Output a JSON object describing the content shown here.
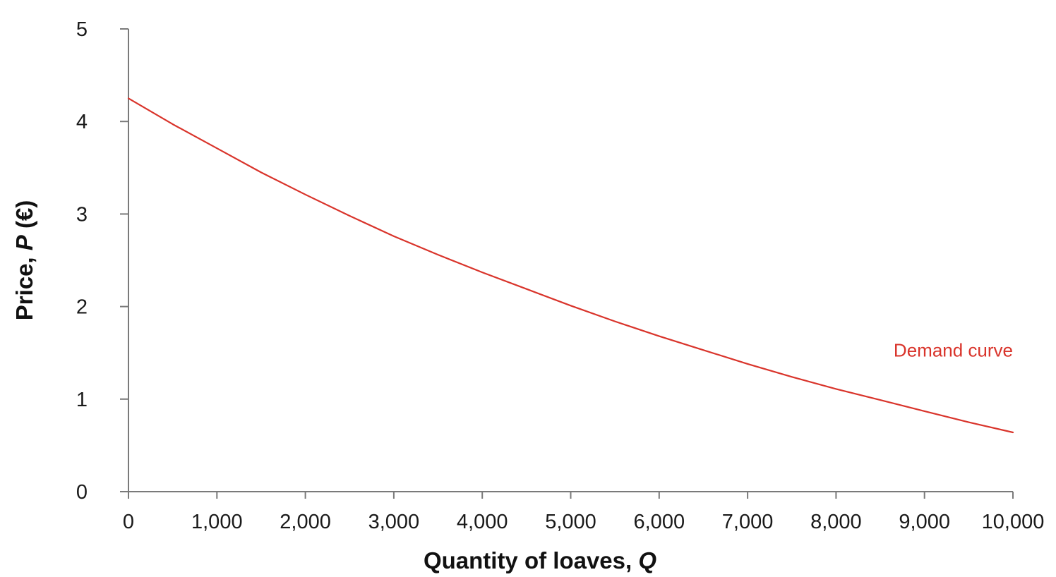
{
  "chart_data": {
    "type": "line",
    "xlabel": "Quantity of loaves, Q",
    "ylabel": "Price, P (€)",
    "xlim": [
      0,
      10000
    ],
    "ylim": [
      0,
      5
    ],
    "x_ticks": [
      {
        "value": 0,
        "label": "0"
      },
      {
        "value": 1000,
        "label": "1,000"
      },
      {
        "value": 2000,
        "label": "2,000"
      },
      {
        "value": 3000,
        "label": "3,000"
      },
      {
        "value": 4000,
        "label": "4,000"
      },
      {
        "value": 5000,
        "label": "5,000"
      },
      {
        "value": 6000,
        "label": "6,000"
      },
      {
        "value": 7000,
        "label": "7,000"
      },
      {
        "value": 8000,
        "label": "8,000"
      },
      {
        "value": 9000,
        "label": "9,000"
      },
      {
        "value": 10000,
        "label": "10,000"
      }
    ],
    "y_ticks": [
      {
        "value": 0,
        "label": "0"
      },
      {
        "value": 1,
        "label": "1"
      },
      {
        "value": 2,
        "label": "2"
      },
      {
        "value": 3,
        "label": "3"
      },
      {
        "value": 4,
        "label": "4"
      },
      {
        "value": 5,
        "label": "5"
      }
    ],
    "grid": false,
    "series": [
      {
        "name": "Demand curve",
        "color": "#d9342b",
        "x": [
          0,
          500,
          1000,
          1500,
          2000,
          2500,
          3000,
          3500,
          4000,
          4500,
          5000,
          5500,
          6000,
          6500,
          7000,
          7500,
          8000,
          8500,
          9000,
          9500,
          10000
        ],
        "y": [
          4.25,
          3.97,
          3.71,
          3.45,
          3.21,
          2.98,
          2.76,
          2.56,
          2.37,
          2.19,
          2.01,
          1.84,
          1.68,
          1.53,
          1.38,
          1.24,
          1.11,
          0.99,
          0.87,
          0.75,
          0.64
        ]
      }
    ],
    "annotations": [
      {
        "text": "Demand curve",
        "x": 9000,
        "y": 1.46,
        "color": "#d9342b"
      }
    ]
  }
}
